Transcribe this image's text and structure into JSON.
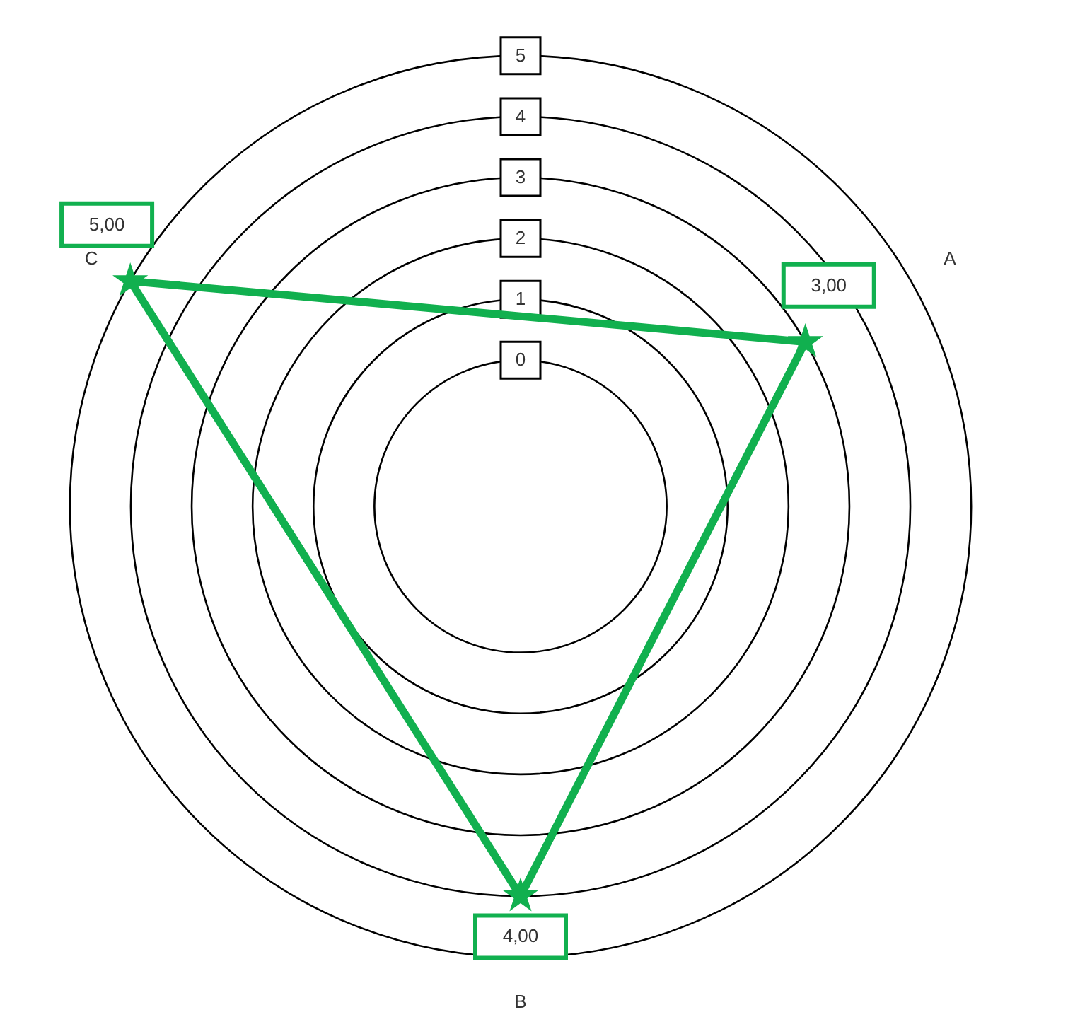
{
  "chart_data": {
    "type": "radar",
    "categories": [
      "A",
      "B",
      "C"
    ],
    "series": [
      {
        "color": "#11b04f",
        "values": [
          3,
          4,
          5
        ],
        "value_labels": [
          "3,00",
          "4,00",
          "5,00"
        ]
      }
    ],
    "ylim": [
      -2.4,
      5
    ],
    "yticks": [
      0,
      1,
      2,
      3,
      4,
      5
    ],
    "grid": true,
    "marker": "star",
    "line_style": "solid"
  }
}
